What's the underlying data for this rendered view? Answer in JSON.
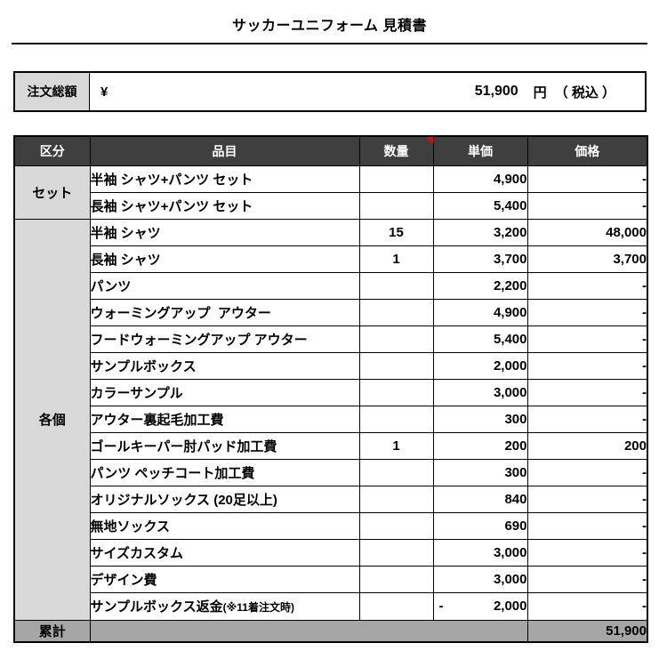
{
  "title": "サッカーユニフォーム 見積書",
  "order_total": {
    "label": "注文総額",
    "currency_symbol": "¥",
    "amount": "51,900",
    "unit": "円",
    "tax_note": "（ 税込 ）"
  },
  "table": {
    "headers": {
      "category": "区分",
      "item": "品目",
      "quantity": "数量",
      "unit_price": "単価",
      "price": "価格"
    },
    "quantity_header_has_comment_marker": true,
    "groups": [
      {
        "label": "セット",
        "rows": [
          {
            "item": "半袖 シャツ+パンツ セット",
            "note": "",
            "quantity": "",
            "unit_price": "4,900",
            "unit_price_minus": false,
            "price": "-"
          },
          {
            "item": "長袖 シャツ+パンツ セット",
            "note": "",
            "quantity": "",
            "unit_price": "5,400",
            "unit_price_minus": false,
            "price": "-"
          }
        ]
      },
      {
        "label": "各個",
        "rows": [
          {
            "item": "半袖 シャツ",
            "note": "",
            "quantity": "15",
            "unit_price": "3,200",
            "unit_price_minus": false,
            "price": "48,000"
          },
          {
            "item": "長袖 シャツ",
            "note": "",
            "quantity": "1",
            "unit_price": "3,700",
            "unit_price_minus": false,
            "price": "3,700"
          },
          {
            "item": "パンツ",
            "note": "",
            "quantity": "",
            "unit_price": "2,200",
            "unit_price_minus": false,
            "price": "-"
          },
          {
            "item": "ウォーミングアップ  アウター",
            "note": "",
            "quantity": "",
            "unit_price": "4,900",
            "unit_price_minus": false,
            "price": "-"
          },
          {
            "item": "フードウォーミングアップ アウター",
            "note": "",
            "quantity": "",
            "unit_price": "5,400",
            "unit_price_minus": false,
            "price": "-"
          },
          {
            "item": "サンプルボックス",
            "note": "",
            "quantity": "",
            "unit_price": "2,000",
            "unit_price_minus": false,
            "price": "-"
          },
          {
            "item": "カラーサンプル",
            "note": "",
            "quantity": "",
            "unit_price": "3,000",
            "unit_price_minus": false,
            "price": "-"
          },
          {
            "item": "アウター裏起毛加工費",
            "note": "",
            "quantity": "",
            "unit_price": "300",
            "unit_price_minus": false,
            "price": "-"
          },
          {
            "item": "ゴールキーパー肘パッド加工費",
            "note": "",
            "quantity": "1",
            "unit_price": "200",
            "unit_price_minus": false,
            "price": "200"
          },
          {
            "item": "パンツ ペッチコート加工費",
            "note": "",
            "quantity": "",
            "unit_price": "300",
            "unit_price_minus": false,
            "price": "-"
          },
          {
            "item": "オリジナルソックス (20足以上)",
            "note": "",
            "quantity": "",
            "unit_price": "840",
            "unit_price_minus": false,
            "price": "-"
          },
          {
            "item": "無地ソックス",
            "note": "",
            "quantity": "",
            "unit_price": "690",
            "unit_price_minus": false,
            "price": "-"
          },
          {
            "item": "サイズカスタム",
            "note": "",
            "quantity": "",
            "unit_price": "3,000",
            "unit_price_minus": false,
            "price": "-"
          },
          {
            "item": "デザイン費",
            "note": "",
            "quantity": "",
            "unit_price": "3,000",
            "unit_price_minus": false,
            "price": "-"
          },
          {
            "item": "サンプルボックス返金",
            "note": "(※11着注文時)",
            "quantity": "",
            "unit_price": "2,000",
            "unit_price_minus": true,
            "price": "-"
          }
        ]
      }
    ],
    "footer": {
      "label": "累計",
      "price": "51,900"
    }
  },
  "colors": {
    "header_bg": "#3f3f3f",
    "header_fg": "#ffffff",
    "group_cell_bg": "#d9d9d9",
    "footer_row_bg": "#a6a6a6",
    "comment_marker": "#ff0000",
    "border": "#000000"
  }
}
